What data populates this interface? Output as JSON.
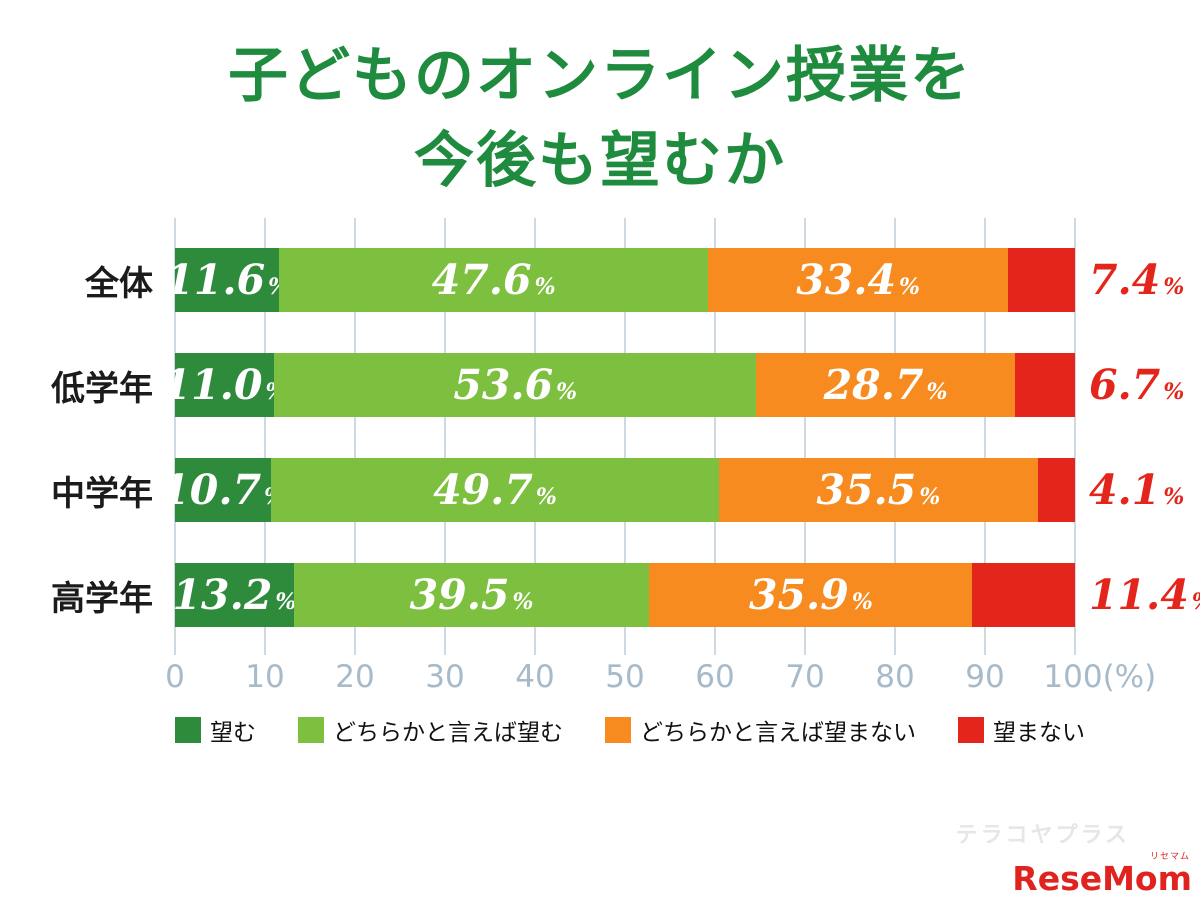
{
  "title": {
    "lines": [
      "子どものオンライン授業を",
      "今後も望むか"
    ],
    "color": "#1f8b3e"
  },
  "chart_data": {
    "type": "bar",
    "stacked": true,
    "orientation": "horizontal",
    "title": "子どものオンライン授業を今後も望むか",
    "categories": [
      "全体",
      "低学年",
      "中学年",
      "高学年"
    ],
    "series": [
      {
        "name": "望む",
        "color": "#2e8b3c",
        "values": [
          11.6,
          11.0,
          10.7,
          13.2
        ],
        "labels": [
          "11.6",
          "11.0",
          "10.7",
          "13.2"
        ]
      },
      {
        "name": "どちらかと言えば望む",
        "color": "#7dbf3f",
        "values": [
          47.6,
          53.6,
          49.7,
          39.5
        ],
        "labels": [
          "47.6",
          "53.6",
          "49.7",
          "39.5"
        ]
      },
      {
        "name": "どちらかと言えば望まない",
        "color": "#f78b1f",
        "values": [
          33.4,
          28.7,
          35.5,
          35.9
        ],
        "labels": [
          "33.4",
          "28.7",
          "35.5",
          "35.9"
        ]
      },
      {
        "name": "望まない",
        "color": "#e3251b",
        "values": [
          7.4,
          6.7,
          4.1,
          11.4
        ],
        "labels": [
          "7.4",
          "6.7",
          "4.1",
          "11.4"
        ],
        "label_outside": true
      }
    ],
    "xlim": [
      0,
      100
    ],
    "x_ticks": [
      "0",
      "10",
      "20",
      "30",
      "40",
      "50",
      "60",
      "70",
      "80",
      "90",
      "100(%)"
    ],
    "unit": "%",
    "grid": true,
    "legend_position": "bottom"
  },
  "legend": {
    "items": [
      "望む",
      "どちらかと言えば望む",
      "どちらかと言えば望まない",
      "望まない"
    ]
  },
  "watermark": {
    "site_text": "テラコヤプラス",
    "logo_text": "ReseMom",
    "logo_sub": "リセマム"
  }
}
